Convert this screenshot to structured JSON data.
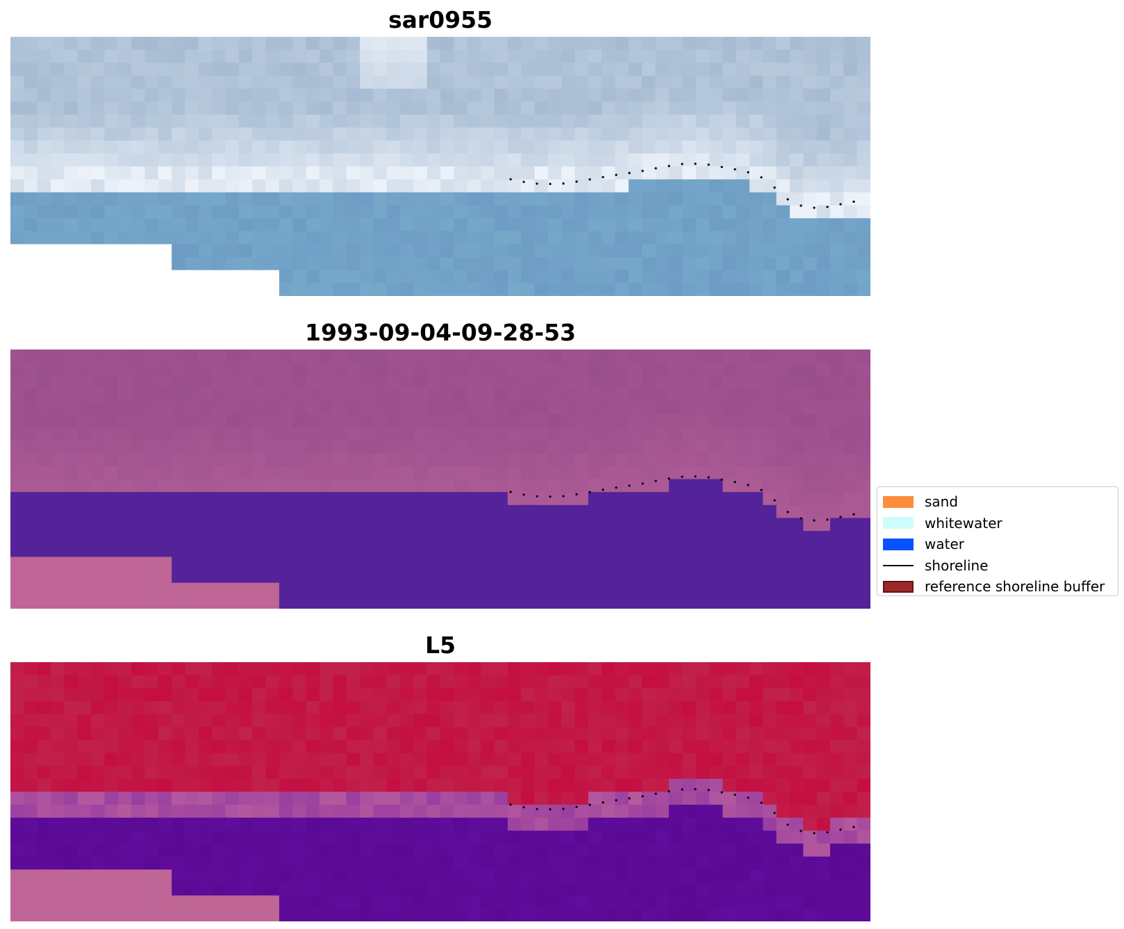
{
  "panels": [
    {
      "title": "sar0955",
      "style": "satellite"
    },
    {
      "title": "1993-09-04-09-28-53",
      "style": "classified"
    },
    {
      "title": "L5",
      "style": "index"
    }
  ],
  "legend": {
    "items": [
      {
        "label": "sand",
        "color": "#fd8c3d",
        "kind": "patch"
      },
      {
        "label": "whitewater",
        "color": "#ccfcfc",
        "kind": "patch"
      },
      {
        "label": "water",
        "color": "#0652ff",
        "kind": "patch"
      },
      {
        "label": "shoreline",
        "color": "#000000",
        "kind": "line"
      },
      {
        "label": "reference shoreline buffer",
        "color": "#9b2a2a",
        "kind": "patch",
        "edge": "#6b1010"
      }
    ]
  },
  "colors": {
    "classified_land": "#9a4f8c",
    "classified_water": "#54239a",
    "nodata_pink": "#bf6697",
    "index_land": "#c0224a",
    "index_water": "#600c9c",
    "shoreline_dots": "#000000"
  }
}
